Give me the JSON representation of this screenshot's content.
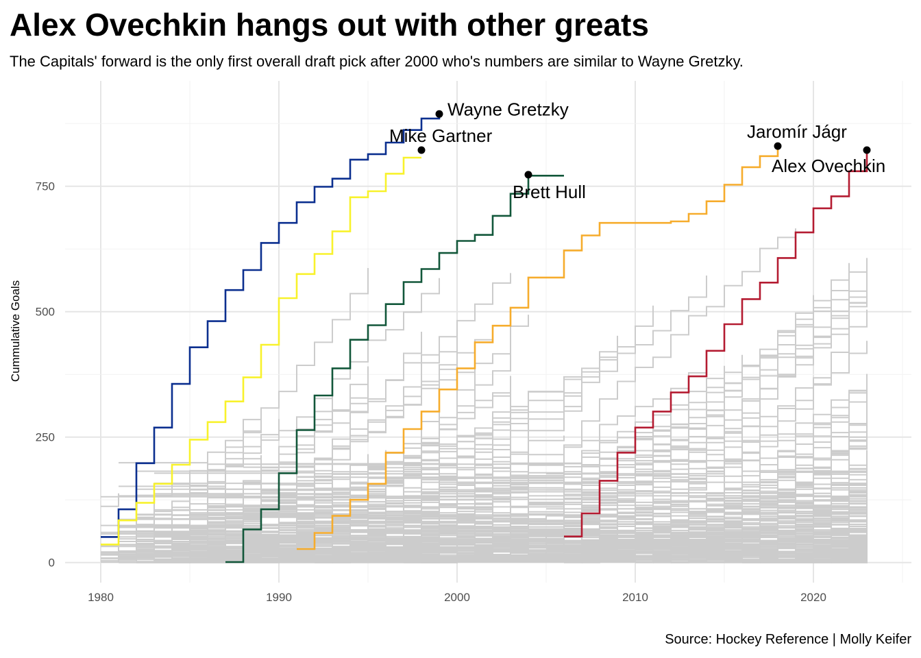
{
  "title": "Alex Ovechkin hangs out with other greats",
  "subtitle": "The Capitals' forward is the only first overall draft pick after 2000 who's numbers are similar to Wayne Gretzky.",
  "caption": "Source: Hockey Reference | Molly Keifer",
  "chart_data": {
    "type": "line",
    "step": true,
    "title": "Alex Ovechkin hangs out with other greats",
    "xlabel": "",
    "ylabel": "Cummulative Goals",
    "xlim": [
      1978,
      2025.5
    ],
    "ylim": [
      -40,
      960
    ],
    "x_ticks": [
      1980,
      1990,
      2000,
      2010,
      2020
    ],
    "y_ticks": [
      0,
      250,
      500,
      750
    ],
    "grid": true,
    "background_series_color": "#cccccc",
    "background_series_note": "hundreds of other first overall picks' careers drawn as grey step lines",
    "highlighted_series": [
      {
        "name": "Wayne Gretzky",
        "color": "#0b2f8f",
        "x": [
          1980,
          1981,
          1982,
          1983,
          1984,
          1985,
          1986,
          1987,
          1988,
          1989,
          1990,
          1991,
          1992,
          1993,
          1994,
          1995,
          1996,
          1997,
          1998,
          1999
        ],
        "y": [
          51,
          106,
          198,
          269,
          356,
          429,
          481,
          543,
          583,
          637,
          677,
          718,
          749,
          765,
          803,
          814,
          837,
          862,
          885,
          894
        ]
      },
      {
        "name": "Mike Gartner",
        "color": "#f8f22b",
        "x": [
          1980,
          1981,
          1982,
          1983,
          1984,
          1985,
          1986,
          1987,
          1988,
          1989,
          1990,
          1991,
          1992,
          1993,
          1994,
          1995,
          1996,
          1997,
          1998
        ],
        "y": [
          36,
          84,
          119,
          157,
          195,
          245,
          280,
          321,
          369,
          434,
          527,
          575,
          615,
          660,
          728,
          740,
          775,
          807,
          807
        ]
      },
      {
        "name": "Brett Hull",
        "color": "#12573a",
        "x": [
          1987,
          1988,
          1989,
          1990,
          1991,
          1992,
          1993,
          1994,
          1995,
          1996,
          1997,
          1998,
          1999,
          2000,
          2001,
          2002,
          2003,
          2004,
          2006
        ],
        "y": [
          1,
          66,
          106,
          178,
          264,
          333,
          387,
          444,
          473,
          515,
          559,
          585,
          617,
          641,
          653,
          691,
          735,
          771,
          771
        ]
      },
      {
        "name": "Jaromír Jágr",
        "color": "#f6ac2c",
        "x": [
          1991,
          1992,
          1993,
          1994,
          1995,
          1996,
          1997,
          1998,
          1999,
          2000,
          2001,
          2002,
          2003,
          2004,
          2006,
          2007,
          2008,
          2011,
          2012,
          2013,
          2014,
          2015,
          2016,
          2017,
          2018
        ],
        "y": [
          27,
          59,
          93,
          125,
          157,
          219,
          266,
          301,
          345,
          387,
          439,
          472,
          508,
          568,
          622,
          652,
          677,
          677,
          680,
          695,
          720,
          753,
          788,
          810,
          829
        ]
      },
      {
        "name": "Alex Ovechkin",
        "color": "#b41b31",
        "x": [
          2006,
          2007,
          2008,
          2009,
          2010,
          2011,
          2012,
          2013,
          2014,
          2015,
          2016,
          2017,
          2018,
          2019,
          2020,
          2021,
          2022,
          2023
        ],
        "y": [
          52,
          98,
          163,
          219,
          269,
          301,
          339,
          371,
          422,
          475,
          525,
          558,
          607,
          658,
          706,
          730,
          780,
          822
        ]
      }
    ],
    "annotations": [
      {
        "text": "Wayne Gretzky",
        "x": 1999,
        "y": 894
      },
      {
        "text": "Mike Gartner",
        "x": 1998,
        "y": 822
      },
      {
        "text": "Brett Hull",
        "x": 2004,
        "y": 773
      },
      {
        "text": "Jaromír Jágr",
        "x": 2018,
        "y": 830
      },
      {
        "text": "Alex Ovechkin",
        "x": 2023,
        "y": 822
      }
    ]
  }
}
